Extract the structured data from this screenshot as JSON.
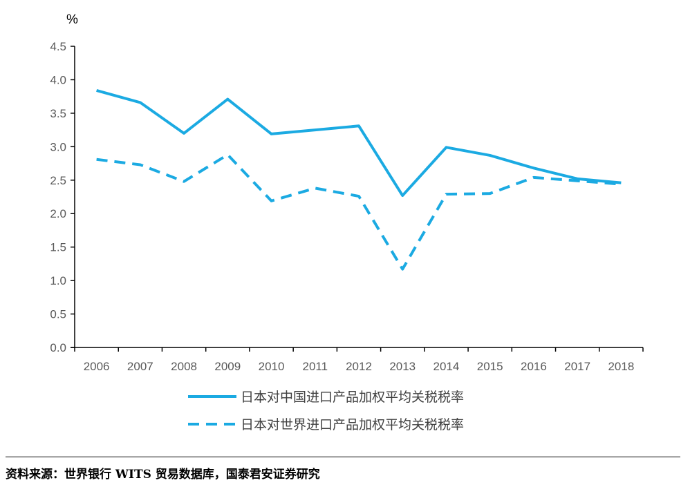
{
  "chart_data": {
    "type": "line",
    "ylabel": "%",
    "ylim": [
      0,
      4.5
    ],
    "yticks": [
      "0.0",
      "0.5",
      "1.0",
      "1.5",
      "2.0",
      "2.5",
      "3.0",
      "3.5",
      "4.0",
      "4.5"
    ],
    "categories": [
      "2006",
      "2007",
      "2008",
      "2009",
      "2010",
      "2011",
      "2012",
      "2013",
      "2014",
      "2015",
      "2016",
      "2017",
      "2018"
    ],
    "grid": false,
    "legend_position": "bottom",
    "series": [
      {
        "name": "日本对中国进口产品加权平均关税税率",
        "style": "solid",
        "color": "#1BAAE2",
        "values": [
          3.84,
          3.66,
          3.2,
          3.71,
          3.19,
          3.25,
          3.31,
          2.27,
          2.99,
          2.87,
          2.68,
          2.52,
          2.46
        ]
      },
      {
        "name": "日本对世界进口产品加权平均关税税率",
        "style": "dashed",
        "color": "#1BAAE2",
        "values": [
          2.81,
          2.73,
          2.48,
          2.88,
          2.19,
          2.38,
          2.26,
          1.17,
          2.29,
          2.3,
          2.54,
          2.49,
          2.44
        ]
      }
    ]
  },
  "source": "资料来源：世界银行 WITS 贸易数据库，国泰君安证券研究"
}
